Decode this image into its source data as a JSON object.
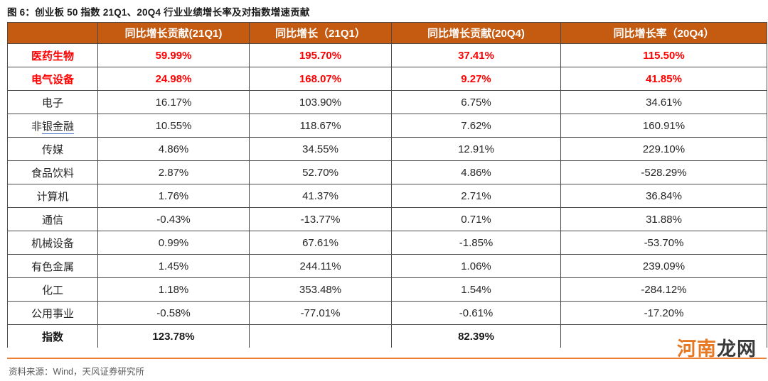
{
  "page": {
    "title": "图 6：创业板 50 指数 21Q1、20Q4 行业业绩增长率及对指数增速贡献",
    "source": "资料来源：Wind，天风证券研究所",
    "watermark": {
      "highlight": "河南",
      "rest": "龙网"
    }
  },
  "colors": {
    "header_bg": "#C55A11",
    "header_text": "#FFFFFF",
    "highlight_red": "#FE0000",
    "accent_orange": "#ED7D31",
    "watermark_orange": "#E87722",
    "underline_blue": "#4472C4",
    "grid_border": "#4A4A4A",
    "body_text": "#262626",
    "source_text": "#595959"
  },
  "chart_data": {
    "type": "table",
    "title": "创业板 50 指数 21Q1、20Q4 行业业绩增长率及对指数增速贡献",
    "columns": [
      "",
      "同比增长贡献(21Q1)",
      "同比增长（21Q1）",
      "同比增长贡献(20Q4)",
      "同比增长率（20Q4）"
    ],
    "rows": [
      {
        "label": "医药生物",
        "values": [
          "59.99%",
          "195.70%",
          "37.41%",
          "115.50%"
        ],
        "style": "red"
      },
      {
        "label": "电气设备",
        "values": [
          "24.98%",
          "168.07%",
          "9.27%",
          "41.85%"
        ],
        "style": "red"
      },
      {
        "label": "电子",
        "values": [
          "16.17%",
          "103.90%",
          "6.75%",
          "34.61%"
        ],
        "style": ""
      },
      {
        "label": "非银金融",
        "underline_part": "银金融",
        "values": [
          "10.55%",
          "118.67%",
          "7.62%",
          "160.91%"
        ],
        "style": ""
      },
      {
        "label": "传媒",
        "values": [
          "4.86%",
          "34.55%",
          "12.91%",
          "229.10%"
        ],
        "style": ""
      },
      {
        "label": "食品饮料",
        "values": [
          "2.87%",
          "52.70%",
          "4.86%",
          "-528.29%"
        ],
        "style": ""
      },
      {
        "label": "计算机",
        "values": [
          "1.76%",
          "41.37%",
          "2.71%",
          "36.84%"
        ],
        "style": ""
      },
      {
        "label": "通信",
        "values": [
          "-0.43%",
          "-13.77%",
          "0.71%",
          "31.88%"
        ],
        "style": ""
      },
      {
        "label": "机械设备",
        "values": [
          "0.99%",
          "67.61%",
          "-1.85%",
          "-53.70%"
        ],
        "style": ""
      },
      {
        "label": "有色金属",
        "values": [
          "1.45%",
          "244.11%",
          "1.06%",
          "239.09%"
        ],
        "style": ""
      },
      {
        "label": "化工",
        "values": [
          "1.18%",
          "353.48%",
          "1.54%",
          "-284.12%"
        ],
        "style": ""
      },
      {
        "label": "公用事业",
        "values": [
          "-0.58%",
          "-77.01%",
          "-0.61%",
          "-17.20%"
        ],
        "style": ""
      },
      {
        "label": "指数",
        "values": [
          "123.78%",
          "",
          "82.39%",
          ""
        ],
        "style": "bold"
      }
    ]
  }
}
